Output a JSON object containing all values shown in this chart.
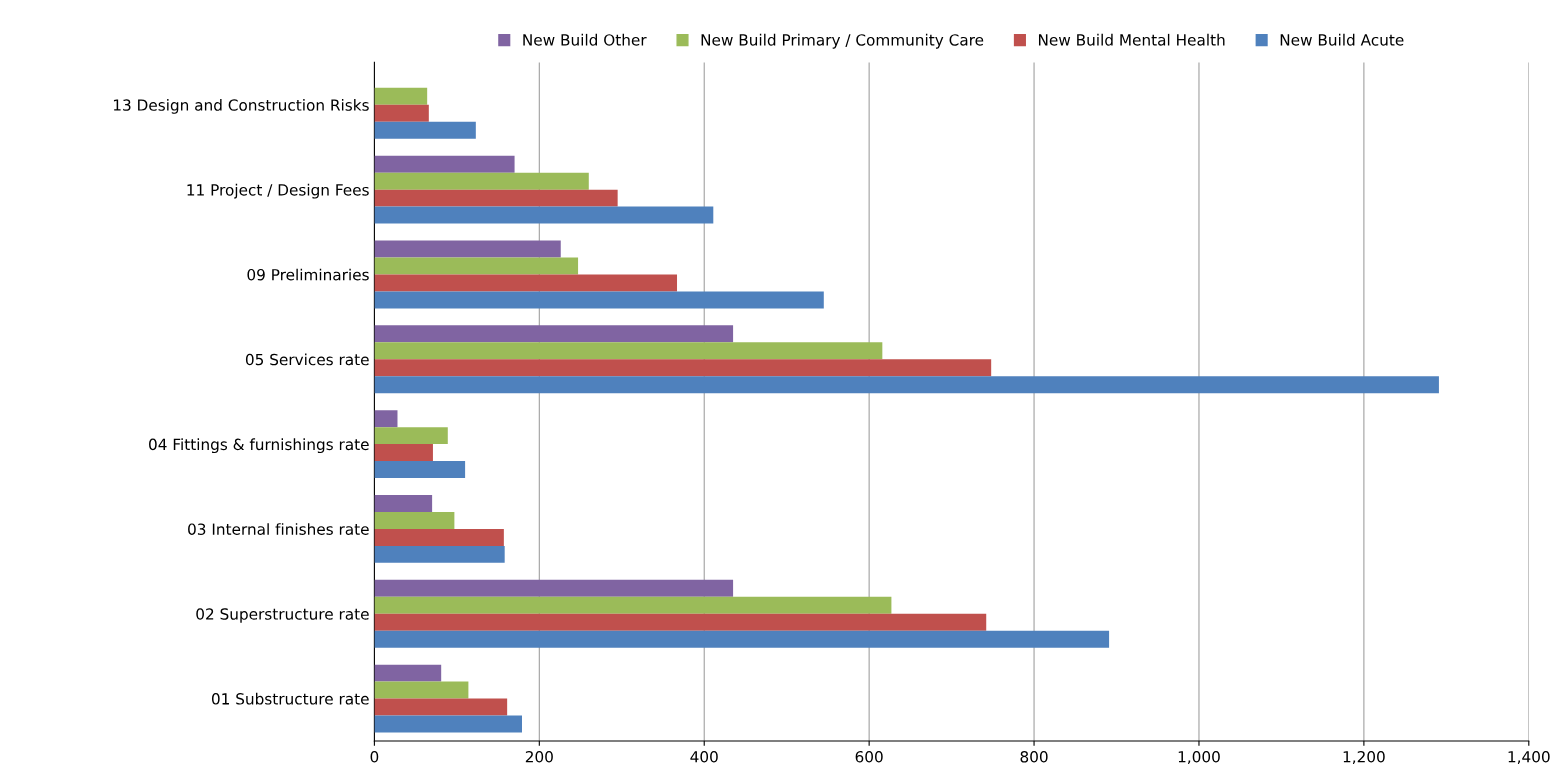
{
  "chart_data": {
    "type": "bar",
    "orientation": "horizontal",
    "categories": [
      "13 Design and Construction Risks",
      "11 Project / Design Fees",
      "09 Preliminaries",
      "05 Services rate",
      "04 Fittings & furnishings rate",
      "03 Internal finishes rate",
      "02 Superstructure rate",
      "01 Substructure rate"
    ],
    "series": [
      {
        "name": "New Build Other",
        "color": "#8064a2",
        "values": [
          null,
          170,
          226,
          435,
          28,
          70,
          435,
          81
        ]
      },
      {
        "name": "New Build Primary / Community Care",
        "color": "#9bbb59",
        "values": [
          64,
          260,
          247,
          616,
          89,
          97,
          627,
          114
        ]
      },
      {
        "name": "New Build Mental Health",
        "color": "#c0504d",
        "values": [
          66,
          295,
          367,
          748,
          71,
          157,
          742,
          161
        ]
      },
      {
        "name": "New Build Acute",
        "color": "#4f81bd",
        "values": [
          123,
          411,
          545,
          1291,
          110,
          158,
          891,
          179
        ]
      }
    ],
    "xlim": [
      0,
      1400
    ],
    "xticks": [
      0,
      200,
      400,
      600,
      800,
      {
        "value": 1000,
        "label": "1,000"
      },
      {
        "value": 1200,
        "label": "1,200"
      },
      {
        "value": 1400,
        "label": "1,400"
      }
    ],
    "grid": "x",
    "legend": "top"
  }
}
